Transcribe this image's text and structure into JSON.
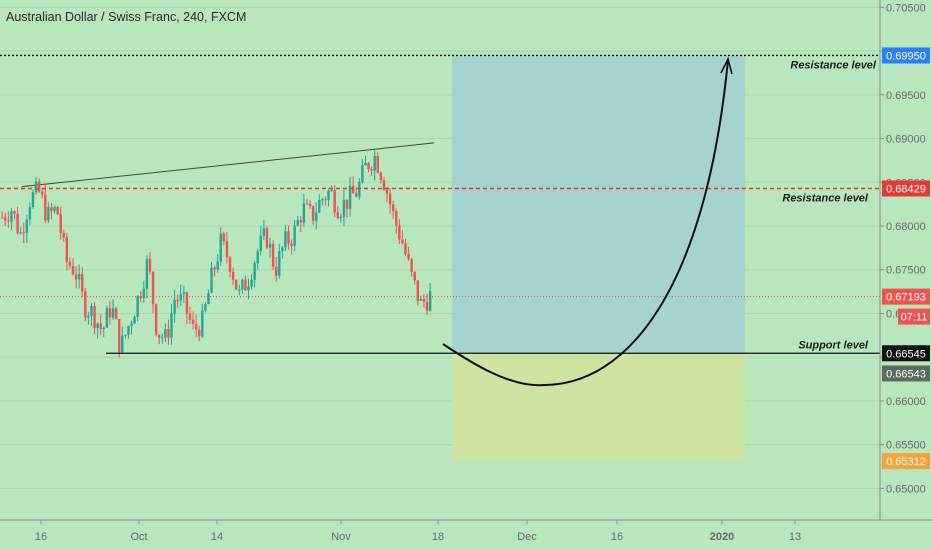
{
  "title": "Australian Dollar / Swiss Franc, 240, FXCM",
  "colors": {
    "background": "#b8e6bd",
    "up": "#26a69a",
    "down": "#ef5350",
    "target_zone": "#a5d3d0",
    "stop_zone": "#cfe3a3",
    "resistance_line": "#e53935",
    "axis_text": "#6b6b6b"
  },
  "price_axis": {
    "ticks": [
      "0.70500",
      "0.70000",
      "0.69500",
      "0.69000",
      "0.68500",
      "0.68000",
      "0.67500",
      "0.67000",
      "0.66500",
      "0.66000",
      "0.65500",
      "0.65000"
    ],
    "tick_values": [
      0.705,
      0.7,
      0.695,
      0.69,
      0.685,
      0.68,
      0.675,
      0.67,
      0.665,
      0.66,
      0.655,
      0.65
    ],
    "range": [
      0.6465,
      0.7055
    ]
  },
  "time_axis": {
    "labels": [
      "16",
      "Oct",
      "14",
      "Nov",
      "18",
      "Dec",
      "16",
      "2020",
      "13"
    ],
    "bold": [
      "2020"
    ]
  },
  "levels": [
    {
      "name": "resistance-upper",
      "label": "Resistance level",
      "price": 0.6995,
      "price_label": "0.69950",
      "style": "dotted",
      "color": "#111111",
      "badge_bg": "#2a7fff"
    },
    {
      "name": "resistance-lower",
      "label": "Resistance level",
      "price": 0.68429,
      "price_label": "0.68429",
      "style": "dashed",
      "color": "#e53935",
      "badge_bg": "#e53935"
    },
    {
      "name": "support",
      "label": "Support level",
      "price": 0.66545,
      "price_label": "0.66545",
      "style": "solid",
      "color": "#111111",
      "badge_bg": "#111111"
    }
  ],
  "badges": [
    {
      "name": "current-price-badge",
      "text": "0.67193",
      "price": 0.67193,
      "bg": "#ef5350"
    },
    {
      "name": "countdown-badge",
      "text": "07:11",
      "bg": "#ef5350"
    },
    {
      "name": "entry-price-badge",
      "text": "0.66543",
      "price": 0.66543,
      "bg": "#5d6b5d"
    },
    {
      "name": "stop-price-badge",
      "text": "0.65312",
      "price": 0.65312,
      "bg": "#f5a23a"
    }
  ],
  "current_price": 0.67193,
  "chart_data": {
    "type": "candlestick",
    "title": "Australian Dollar / Swiss Franc, 240, FXCM",
    "ylim": [
      0.6465,
      0.7055
    ],
    "trendline": {
      "from": {
        "date": "Sep 18",
        "price": 0.6845
      },
      "to": {
        "date": "Nov 18",
        "price": 0.6895
      }
    },
    "closes_approx": [
      0.681,
      0.682,
      0.679,
      0.683,
      0.684,
      0.681,
      0.682,
      0.676,
      0.675,
      0.671,
      0.67,
      0.668,
      0.671,
      0.666,
      0.669,
      0.672,
      0.676,
      0.668,
      0.667,
      0.672,
      0.671,
      0.668,
      0.669,
      0.674,
      0.678,
      0.676,
      0.672,
      0.674,
      0.677,
      0.679,
      0.675,
      0.678,
      0.679,
      0.682,
      0.681,
      0.683,
      0.684,
      0.682,
      0.683,
      0.684,
      0.687,
      0.688,
      0.685,
      0.681,
      0.678,
      0.674,
      0.671,
      0.672
    ],
    "trade_zone": {
      "entry": 0.66543,
      "target": 0.6995,
      "stop": 0.65312
    }
  }
}
